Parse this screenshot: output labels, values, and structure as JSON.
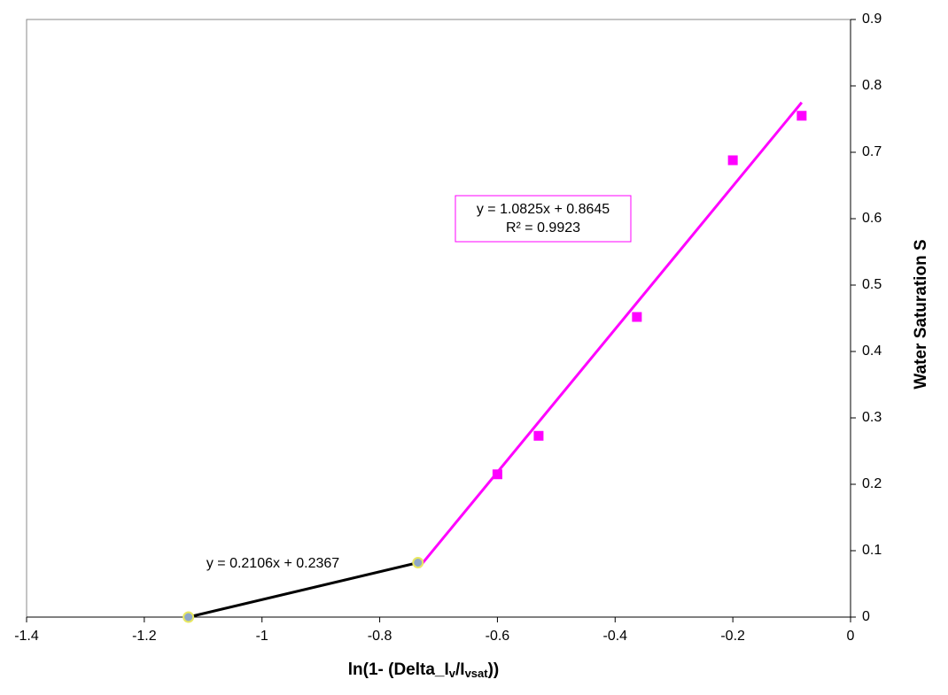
{
  "chart_data": {
    "type": "scatter",
    "x_label": [
      "ln(1- (Delta_I",
      "v",
      "/I",
      "vsat",
      "))"
    ],
    "y_label": "Water Saturation S",
    "annotations": [
      "y = 1.0825x + 0.8645",
      "R² = 0.9923",
      "y = 0.2106x + 0.2367"
    ],
    "xlim": [
      -1.4,
      0
    ],
    "xticks": [
      -1.4,
      -1.2,
      -1,
      -0.8,
      -0.6,
      -0.4,
      -0.2,
      0
    ],
    "ylim": [
      0,
      0.9
    ],
    "yticks": [
      0,
      0.1,
      0.2,
      0.3,
      0.4,
      0.5,
      0.6,
      0.7,
      0.8,
      0.9
    ],
    "grid": false,
    "series": [
      {
        "marker": "line",
        "color": "#000000",
        "x": [
          -1.125,
          -0.735
        ],
        "values": [
          0,
          0.082
        ]
      },
      {
        "marker": "line",
        "color": "#ff00ff",
        "x": [
          -0.733,
          -0.083
        ],
        "values": [
          0.075,
          0.775
        ]
      },
      {
        "marker": "circle",
        "color": "#8fa8c8",
        "x": [
          -1.125,
          -0.735
        ],
        "values": [
          0,
          0.082
        ]
      },
      {
        "marker": "square",
        "color": "#ff00ff",
        "x": [
          -0.6,
          -0.53,
          -0.363,
          -0.2,
          -0.083
        ],
        "values": [
          0.215,
          0.273,
          0.452,
          0.688,
          0.755
        ]
      }
    ]
  }
}
